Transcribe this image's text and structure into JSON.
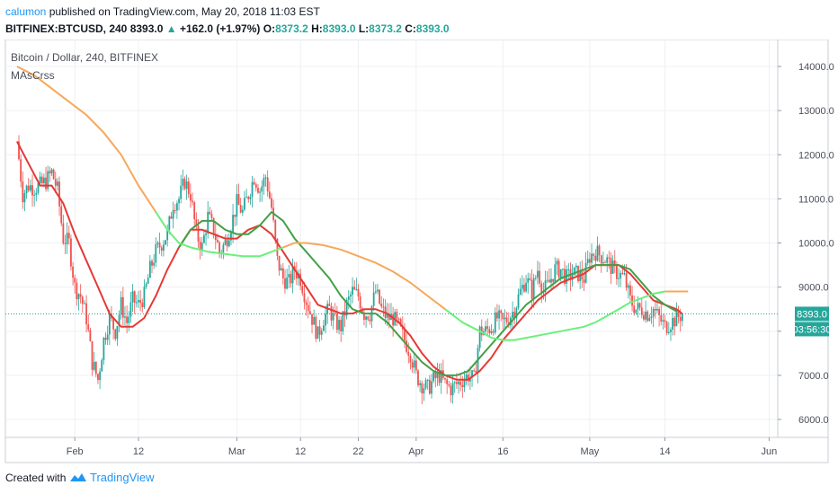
{
  "header": {
    "author": "calumon",
    "published_text": "published on TradingView.com, May 20, 2018 11:03 EST",
    "symbol": "BITFINEX:BTCUSD, 240",
    "last": "8393.0",
    "change": "+162.0 (+1.97%)",
    "o_label": "O:",
    "o_value": "8373.2",
    "h_label": "H:",
    "h_value": "8393.0",
    "l_label": "L:",
    "l_value": "8373.2",
    "c_label": "C:",
    "c_value": "8393.0"
  },
  "legend": {
    "title": "Bitcoin / Dollar, 240, BITFINEX",
    "indicator": "MAsCrss"
  },
  "footer": {
    "created_with": "Created with",
    "brand": "TradingView"
  },
  "colors": {
    "up": "#26a69a",
    "down": "#ef5350",
    "fast_ma": "#e53935",
    "mid_ma": "#43a047",
    "slow_ma_green": "#69f07a",
    "slow_ma_orange": "#f6a85a",
    "price_label": "#26a69a"
  },
  "chart_data": {
    "type": "candlestick",
    "title": "Bitcoin / Dollar, 240, BITFINEX",
    "x_ticks": [
      "Feb",
      "12",
      "Mar",
      "12",
      "22",
      "Apr",
      "16",
      "May",
      "14",
      "Jun"
    ],
    "x_tick_days": [
      32,
      43,
      60,
      71,
      81,
      91,
      106,
      121,
      134,
      152
    ],
    "y_ticks": [
      "6000.0",
      "7000.0",
      "8000.0",
      "9000.0",
      "10000.0",
      "11000.0",
      "12000.0",
      "13000.0",
      "14000.0"
    ],
    "y_tick_values": [
      6000,
      7000,
      8000,
      9000,
      10000,
      11000,
      12000,
      13000,
      14000
    ],
    "y_range": [
      5500,
      14500
    ],
    "x_range": [
      "2018-01-22",
      "2018-06-02"
    ],
    "last_price": 8393.0,
    "last_price_label": "8393.0",
    "countdown_label": "03:56:30",
    "price_path": [
      [
        22,
        12300
      ],
      [
        23,
        11100
      ],
      [
        24,
        11300
      ],
      [
        25,
        11250
      ],
      [
        26,
        11300
      ],
      [
        27,
        11400
      ],
      [
        28,
        11600
      ],
      [
        29,
        11200
      ],
      [
        30,
        10100
      ],
      [
        31,
        10000
      ],
      [
        32,
        9000
      ],
      [
        33,
        8800
      ],
      [
        34,
        8300
      ],
      [
        35,
        7300
      ],
      [
        36,
        6900
      ],
      [
        37,
        7800
      ],
      [
        38,
        8300
      ],
      [
        39,
        8000
      ],
      [
        40,
        8600
      ],
      [
        41,
        8200
      ],
      [
        42,
        8700
      ],
      [
        43,
        8600
      ],
      [
        44,
        8800
      ],
      [
        45,
        9400
      ],
      [
        46,
        9800
      ],
      [
        47,
        10000
      ],
      [
        48,
        10200
      ],
      [
        49,
        10900
      ],
      [
        50,
        11000
      ],
      [
        51,
        11400
      ],
      [
        52,
        11100
      ],
      [
        53,
        10200
      ],
      [
        54,
        9900
      ],
      [
        55,
        10600
      ],
      [
        56,
        10300
      ],
      [
        57,
        9800
      ],
      [
        58,
        10000
      ],
      [
        59,
        10400
      ],
      [
        60,
        10900
      ],
      [
        61,
        10700
      ],
      [
        62,
        11100
      ],
      [
        63,
        11500
      ],
      [
        64,
        11200
      ],
      [
        65,
        11500
      ],
      [
        66,
        10800
      ],
      [
        67,
        9600
      ],
      [
        68,
        9200
      ],
      [
        69,
        9100
      ],
      [
        70,
        9400
      ],
      [
        71,
        9200
      ],
      [
        72,
        8700
      ],
      [
        73,
        8300
      ],
      [
        74,
        7900
      ],
      [
        75,
        8300
      ],
      [
        76,
        8500
      ],
      [
        77,
        8200
      ],
      [
        78,
        8100
      ],
      [
        79,
        8600
      ],
      [
        80,
        8900
      ],
      [
        81,
        8800
      ],
      [
        82,
        8400
      ],
      [
        83,
        8400
      ],
      [
        84,
        8900
      ],
      [
        85,
        8500
      ],
      [
        86,
        8300
      ],
      [
        87,
        8300
      ],
      [
        88,
        8100
      ],
      [
        89,
        7800
      ],
      [
        90,
        7500
      ],
      [
        91,
        7000
      ],
      [
        92,
        6800
      ],
      [
        93,
        6700
      ],
      [
        94,
        6900
      ],
      [
        95,
        7000
      ],
      [
        96,
        6800
      ],
      [
        97,
        6700
      ],
      [
        98,
        6800
      ],
      [
        99,
        6900
      ],
      [
        100,
        7000
      ],
      [
        101,
        6900
      ],
      [
        102,
        8000
      ],
      [
        103,
        8000
      ],
      [
        104,
        8100
      ],
      [
        105,
        8300
      ],
      [
        106,
        8200
      ],
      [
        107,
        8300
      ],
      [
        108,
        8500
      ],
      [
        109,
        8900
      ],
      [
        110,
        9200
      ],
      [
        111,
        8900
      ],
      [
        112,
        9400
      ],
      [
        113,
        8900
      ],
      [
        114,
        9100
      ],
      [
        115,
        9400
      ],
      [
        116,
        9400
      ],
      [
        117,
        9200
      ],
      [
        118,
        9300
      ],
      [
        119,
        9300
      ],
      [
        120,
        9200
      ],
      [
        121,
        9700
      ],
      [
        122,
        9800
      ],
      [
        123,
        9700
      ],
      [
        124,
        9600
      ],
      [
        125,
        9400
      ],
      [
        126,
        9300
      ],
      [
        127,
        9200
      ],
      [
        128,
        8700
      ],
      [
        129,
        8500
      ],
      [
        130,
        8500
      ],
      [
        131,
        8400
      ],
      [
        132,
        8500
      ],
      [
        133,
        8300
      ],
      [
        134,
        8100
      ],
      [
        135,
        8200
      ],
      [
        136,
        8300
      ],
      [
        137,
        8393
      ]
    ],
    "series": [
      {
        "role": "fast_ma",
        "color": "#e53935",
        "points": [
          [
            22,
            12300
          ],
          [
            24,
            11800
          ],
          [
            26,
            11300
          ],
          [
            28,
            11300
          ],
          [
            30,
            10900
          ],
          [
            32,
            10200
          ],
          [
            34,
            9600
          ],
          [
            36,
            9000
          ],
          [
            38,
            8400
          ],
          [
            40,
            8100
          ],
          [
            42,
            8100
          ],
          [
            44,
            8300
          ],
          [
            46,
            8800
          ],
          [
            48,
            9400
          ],
          [
            50,
            9900
          ],
          [
            52,
            10300
          ],
          [
            54,
            10300
          ],
          [
            56,
            10200
          ],
          [
            58,
            10100
          ],
          [
            60,
            10100
          ],
          [
            62,
            10300
          ],
          [
            64,
            10400
          ],
          [
            66,
            10200
          ],
          [
            68,
            9800
          ],
          [
            70,
            9400
          ],
          [
            72,
            9000
          ],
          [
            74,
            8600
          ],
          [
            76,
            8500
          ],
          [
            78,
            8400
          ],
          [
            80,
            8400
          ],
          [
            82,
            8500
          ],
          [
            84,
            8500
          ],
          [
            86,
            8400
          ],
          [
            88,
            8200
          ],
          [
            90,
            7900
          ],
          [
            92,
            7500
          ],
          [
            94,
            7200
          ],
          [
            96,
            7000
          ],
          [
            98,
            6900
          ],
          [
            100,
            6900
          ],
          [
            102,
            7100
          ],
          [
            104,
            7400
          ],
          [
            106,
            7800
          ],
          [
            108,
            8100
          ],
          [
            110,
            8400
          ],
          [
            112,
            8700
          ],
          [
            114,
            8900
          ],
          [
            116,
            9100
          ],
          [
            118,
            9200
          ],
          [
            120,
            9300
          ],
          [
            122,
            9500
          ],
          [
            124,
            9500
          ],
          [
            126,
            9500
          ],
          [
            128,
            9300
          ],
          [
            130,
            9000
          ],
          [
            132,
            8700
          ],
          [
            134,
            8600
          ],
          [
            136,
            8500
          ],
          [
            137,
            8393
          ]
        ]
      },
      {
        "role": "mid_ma",
        "color": "#43a047",
        "points": [
          [
            50,
            9900
          ],
          [
            52,
            10300
          ],
          [
            54,
            10500
          ],
          [
            56,
            10500
          ],
          [
            58,
            10300
          ],
          [
            60,
            10200
          ],
          [
            62,
            10200
          ],
          [
            64,
            10400
          ],
          [
            66,
            10700
          ],
          [
            68,
            10500
          ],
          [
            70,
            10100
          ],
          [
            72,
            9800
          ],
          [
            74,
            9500
          ],
          [
            76,
            9200
          ],
          [
            78,
            8800
          ],
          [
            80,
            8500
          ],
          [
            82,
            8400
          ],
          [
            84,
            8400
          ],
          [
            86,
            8200
          ],
          [
            88,
            7900
          ],
          [
            90,
            7600
          ],
          [
            92,
            7300
          ],
          [
            94,
            7100
          ],
          [
            96,
            7000
          ],
          [
            98,
            7000
          ],
          [
            100,
            7100
          ],
          [
            102,
            7400
          ],
          [
            104,
            7700
          ],
          [
            106,
            8000
          ],
          [
            108,
            8300
          ],
          [
            110,
            8600
          ],
          [
            112,
            8800
          ],
          [
            114,
            9000
          ],
          [
            116,
            9200
          ],
          [
            118,
            9300
          ],
          [
            120,
            9400
          ],
          [
            122,
            9500
          ],
          [
            124,
            9500
          ],
          [
            126,
            9500
          ],
          [
            128,
            9400
          ],
          [
            130,
            9100
          ],
          [
            132,
            8800
          ],
          [
            134,
            8600
          ],
          [
            136,
            8450
          ]
        ]
      },
      {
        "role": "slow_ma",
        "color_below": "#69f07a",
        "color_above": "#f6a85a",
        "points": [
          [
            22,
            14000
          ],
          [
            25,
            13800
          ],
          [
            28,
            13500
          ],
          [
            31,
            13200
          ],
          [
            34,
            12900
          ],
          [
            37,
            12500
          ],
          [
            40,
            12000
          ],
          [
            43,
            11300
          ],
          [
            46,
            10700
          ],
          [
            48,
            10300
          ],
          [
            50,
            10000
          ],
          [
            52,
            9900
          ],
          [
            55,
            9800
          ],
          [
            58,
            9750
          ],
          [
            61,
            9700
          ],
          [
            64,
            9700
          ],
          [
            66,
            9800
          ],
          [
            68,
            9900
          ],
          [
            70,
            10000
          ],
          [
            72,
            10000
          ],
          [
            75,
            9950
          ],
          [
            78,
            9850
          ],
          [
            81,
            9700
          ],
          [
            84,
            9550
          ],
          [
            87,
            9350
          ],
          [
            90,
            9100
          ],
          [
            93,
            8800
          ],
          [
            96,
            8500
          ],
          [
            99,
            8200
          ],
          [
            102,
            8000
          ],
          [
            104,
            7850
          ],
          [
            106,
            7800
          ],
          [
            108,
            7800
          ],
          [
            110,
            7850
          ],
          [
            112,
            7900
          ],
          [
            114,
            7950
          ],
          [
            116,
            8000
          ],
          [
            118,
            8050
          ],
          [
            120,
            8100
          ],
          [
            122,
            8200
          ],
          [
            124,
            8350
          ],
          [
            126,
            8500
          ],
          [
            128,
            8650
          ],
          [
            130,
            8750
          ],
          [
            132,
            8850
          ],
          [
            134,
            8900
          ],
          [
            136,
            8900
          ],
          [
            138,
            8900
          ]
        ]
      }
    ]
  }
}
